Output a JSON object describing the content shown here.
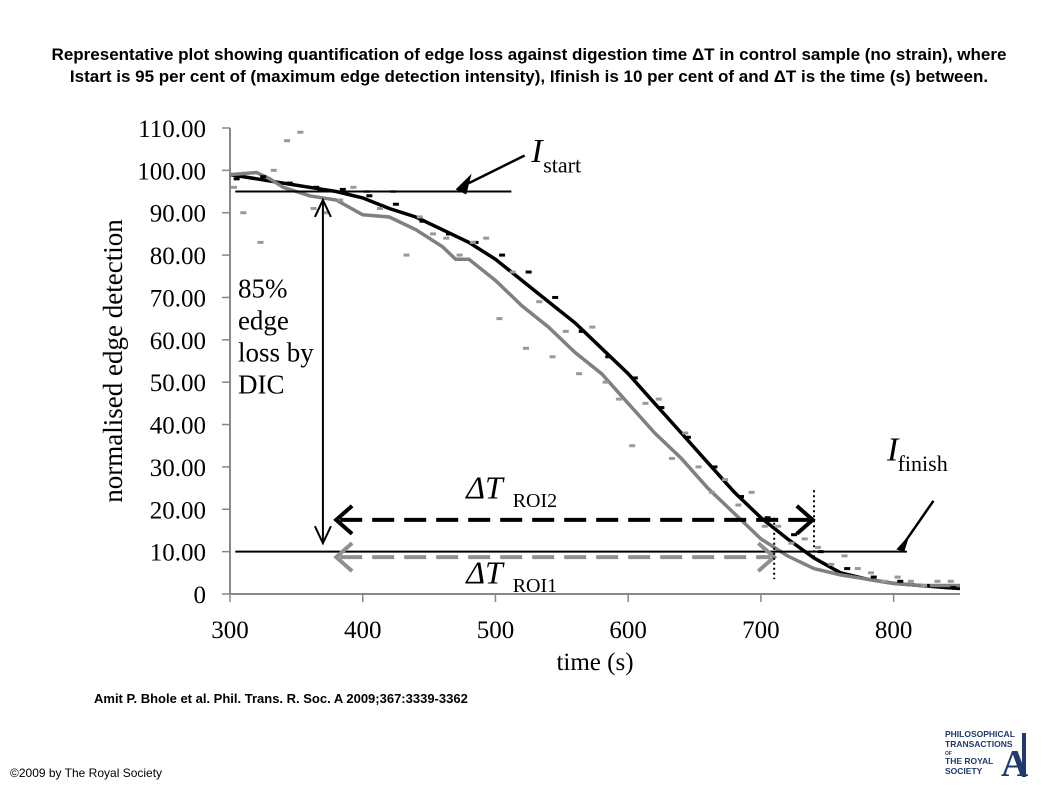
{
  "slide": {
    "title": "Representative plot showing quantification of edge loss against digestion time ΔT in control sample (no strain), where Istart is 95 per cent of (maximum edge detection intensity), Ifinish is 10 per cent of and ΔT is the time (s) between.",
    "citation": "Amit P. Bhole et al. Phil. Trans. R. Soc. A 2009;367:3339-3362",
    "copyright": "©2009 by The Royal Society",
    "logo_text": [
      "PHILOSOPHICAL",
      "TRANSACTIONS",
      "OF",
      "THE ROYAL",
      "SOCIETY"
    ],
    "logo_letter": "A",
    "logo_color": "#1f3a6e"
  },
  "chart_data": {
    "type": "line",
    "xlabel": "time (s)",
    "ylabel": "normalised edge detection",
    "xlim": [
      300,
      850
    ],
    "ylim": [
      0,
      110
    ],
    "x_ticks": [
      300,
      400,
      500,
      600,
      700,
      800
    ],
    "x_tick_labels": [
      "300",
      "400",
      "500",
      "600",
      "700",
      "800"
    ],
    "y_ticks": [
      0,
      10,
      20,
      30,
      40,
      50,
      60,
      70,
      80,
      90,
      100,
      110
    ],
    "y_tick_labels": [
      "0",
      "10.00",
      "20.00",
      "30.00",
      "40.00",
      "50.00",
      "60.00",
      "70.00",
      "80.00",
      "90.00",
      "100.00",
      "110.00"
    ],
    "series": [
      {
        "color": "#000000",
        "style": "line",
        "x": [
          300,
          320,
          340,
          360,
          380,
          400,
          420,
          440,
          460,
          480,
          500,
          520,
          540,
          560,
          580,
          600,
          620,
          640,
          660,
          680,
          700,
          720,
          740,
          760,
          780,
          800,
          820,
          840,
          850
        ],
        "y": [
          99,
          98,
          97,
          96,
          95,
          93.5,
          91,
          89,
          86,
          83,
          79,
          74,
          69,
          64,
          58,
          52,
          45,
          38,
          31,
          24,
          18,
          13,
          8.5,
          5,
          3.5,
          2.5,
          2,
          1.5,
          1.3
        ]
      },
      {
        "color": "#808080",
        "style": "line",
        "x": [
          300,
          320,
          330,
          340,
          360,
          380,
          400,
          420,
          440,
          460,
          470,
          480,
          500,
          520,
          540,
          560,
          580,
          600,
          620,
          640,
          660,
          680,
          700,
          720,
          740,
          760,
          780,
          800,
          820,
          840,
          850
        ],
        "y": [
          99,
          99.5,
          98,
          96,
          94,
          93,
          89.5,
          89,
          86,
          82,
          79,
          79,
          74,
          68,
          63,
          57,
          52,
          45,
          38,
          32,
          25,
          19,
          13,
          9,
          6,
          4.5,
          3.5,
          2.5,
          2,
          2,
          2
        ]
      },
      {
        "color": "#000000",
        "style": "dash-markers",
        "x": [
          305,
          325,
          345,
          365,
          385,
          405,
          425,
          445,
          465,
          485,
          505,
          525,
          545,
          565,
          585,
          605,
          625,
          645,
          665,
          685,
          705,
          725,
          745,
          765,
          785,
          805,
          825,
          845
        ],
        "y": [
          98,
          98.5,
          97,
          96,
          95.5,
          94,
          92,
          88,
          85,
          83,
          80,
          76,
          70,
          62,
          56,
          51,
          44,
          37,
          30,
          23,
          18,
          14,
          10,
          6,
          4,
          3,
          2,
          1.5
        ]
      },
      {
        "color": "#999999",
        "style": "dash-markers",
        "x": [
          303,
          310,
          323,
          333,
          343,
          353,
          363,
          373,
          383,
          393,
          403,
          413,
          423,
          433,
          443,
          453,
          463,
          473,
          483,
          493,
          503,
          513,
          523,
          533,
          543,
          553,
          563,
          573,
          583,
          593,
          603,
          613,
          623,
          633,
          643,
          653,
          663,
          673,
          683,
          693,
          703,
          713,
          723,
          733,
          743,
          753,
          763,
          773,
          783,
          793,
          803,
          813,
          823,
          833,
          843
        ],
        "y": [
          96,
          90,
          83,
          100,
          107,
          109,
          91,
          90,
          93,
          96,
          95,
          91,
          95,
          80,
          89,
          85,
          84,
          80,
          83,
          84,
          65,
          76,
          58,
          69,
          56,
          62,
          52,
          63,
          50,
          46,
          35,
          45,
          46,
          32,
          38,
          30,
          24,
          27,
          21,
          24,
          16,
          16,
          12,
          13,
          11,
          7,
          9,
          6,
          5,
          3,
          4,
          3,
          2,
          3,
          3
        ]
      }
    ],
    "annotations": {
      "i_start_label": "I",
      "i_start_sub": "start",
      "i_finish_label": "I",
      "i_finish_sub": "finish",
      "loss_label": [
        "85%",
        "edge",
        "loss by",
        "DIC"
      ],
      "delta_roi2_label": "ΔT",
      "delta_roi2_sub": "ROI2",
      "delta_roi1_label": "ΔT",
      "delta_roi1_sub": "ROI1",
      "i_start_level": 95,
      "i_finish_level": 10,
      "roi2_range": [
        380,
        740
      ],
      "roi1_range": [
        380,
        710
      ],
      "loss_arrow_x": 370,
      "loss_arrow_range": [
        12,
        88
      ]
    }
  }
}
